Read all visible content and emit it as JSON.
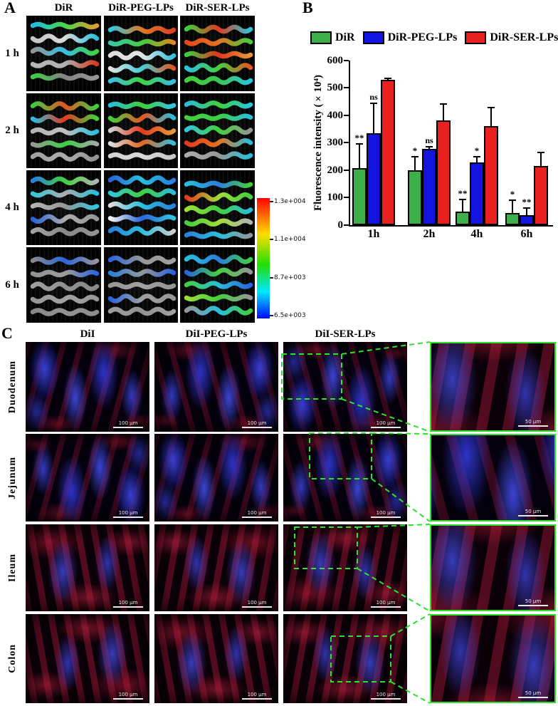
{
  "panel_a": {
    "label": "A",
    "column_headers": [
      "DiR",
      "DiR-PEG-LPs",
      "DiR-SER-LPs"
    ],
    "row_labels": [
      "1 h",
      "2 h",
      "4 h",
      "6 h"
    ],
    "colorbar": {
      "tick_labels": [
        "1.3e+004",
        "1.1e+004",
        "8.7e+003",
        "6.5e+003"
      ],
      "gradient_top_to_bottom": [
        "#ff0000",
        "#ffdd00",
        "#22e000",
        "#00e8ff",
        "#0008ff"
      ]
    },
    "cells": [
      {
        "row": "1 h",
        "col": "DiR",
        "lines": [
          [
            "#22c8f0",
            "#4ce24a",
            "#f2a13a"
          ],
          [
            "#cfcfcf",
            "#e5e5e5",
            "#2bc8e8"
          ],
          [
            "#9a9a9a",
            "#39c9ee",
            "#43dd3f"
          ],
          [
            "#c0c0c0",
            "#b8b8b8",
            "#e03c20"
          ],
          [
            "#3fd846",
            "#8a8a8a",
            "#9f9f9f"
          ]
        ]
      },
      {
        "row": "1 h",
        "col": "DiR-PEG-LPs",
        "lines": [
          [
            "#35d0e8",
            "#e87f2a",
            "#e8442a"
          ],
          [
            "#3bd0b0",
            "#45d843",
            "#ef8f1f"
          ],
          [
            "#e8e8e8",
            "#f0f0f0",
            "#35c8e8"
          ],
          [
            "#eeeeee",
            "#46d6e2",
            "#ef5a22"
          ],
          [
            "#40c8ee",
            "#43dd43",
            "#37c8e8"
          ]
        ]
      },
      {
        "row": "1 h",
        "col": "DiR-SER-LPs",
        "lines": [
          [
            "#3fd846",
            "#ef3b1e",
            "#2ad0e8"
          ],
          [
            "#ef4a1e",
            "#f07820",
            "#44da40"
          ],
          [
            "#41d843",
            "#ef361c",
            "#f2a13a"
          ],
          [
            "#2ecbe8",
            "#44da40",
            "#ef5a22"
          ],
          [
            "#44da40",
            "#3fcf52",
            "#2ad0e8"
          ]
        ]
      },
      {
        "row": "2 h",
        "col": "DiR",
        "lines": [
          [
            "#3fd846",
            "#ef5a22",
            "#41d843"
          ],
          [
            "#2bc8e8",
            "#ef3b1e",
            "#44da40"
          ],
          [
            "#bdbdbd",
            "#c9c9c9",
            "#2bc8e8"
          ],
          [
            "#9e9e9e",
            "#3fd846",
            "#b0b0b0"
          ],
          [
            "#aaaaaa",
            "#b5b5b5",
            "#9a9a9a"
          ]
        ]
      },
      {
        "row": "2 h",
        "col": "DiR-PEG-LPs",
        "lines": [
          [
            "#2bc8e8",
            "#44da40",
            "#35d0e8"
          ],
          [
            "#44da40",
            "#ef5a22",
            "#2bc8e8"
          ],
          [
            "#d9d9d9",
            "#ef3b1e",
            "#f2a13a"
          ],
          [
            "#e8e8e8",
            "#ef6a20",
            "#35c8e8"
          ],
          [
            "#dddddd",
            "#e3e3e3",
            "#cfcfcf"
          ]
        ]
      },
      {
        "row": "2 h",
        "col": "DiR-SER-LPs",
        "lines": [
          [
            "#2bc8e8",
            "#44da40",
            "#2ad0e8"
          ],
          [
            "#44da40",
            "#3fd846",
            "#2bc8e8"
          ],
          [
            "#35d0e8",
            "#44da40",
            "#9e9e9e"
          ],
          [
            "#ef3b1e",
            "#f07820",
            "#2bc8e8"
          ],
          [
            "#b5b5b5",
            "#9e9e9e",
            "#2bc8e8"
          ]
        ]
      },
      {
        "row": "4 h",
        "col": "DiR",
        "lines": [
          [
            "#2b86e8",
            "#44da40",
            "#bdbdbd"
          ],
          [
            "#35d0e8",
            "#b5b5b5",
            "#2bc8e8"
          ],
          [
            "#bdbdbd",
            "#9e9e9e",
            "#35d0e8"
          ],
          [
            "#2b6ae8",
            "#b5b5b5",
            "#9e9e9e"
          ],
          [
            "#aaaaaa",
            "#8f8f8f",
            "#9a9a9a"
          ]
        ]
      },
      {
        "row": "4 h",
        "col": "DiR-PEG-LPs",
        "lines": [
          [
            "#2b6ae8",
            "#2bc8e8",
            "#2b86e8"
          ],
          [
            "#35d0e8",
            "#44da40",
            "#2bc8e8"
          ],
          [
            "#e8e8e8",
            "#2bc8e8",
            "#2b86e8"
          ],
          [
            "#ffffff",
            "#2b6ae8",
            "#35d0e8"
          ],
          [
            "#2b86e8",
            "#2bc8e8",
            "#d9d9d9"
          ]
        ]
      },
      {
        "row": "4 h",
        "col": "DiR-SER-LPs",
        "lines": [
          [
            "#2bc8e8",
            "#2b86e8",
            "#44da40"
          ],
          [
            "#ef3b1e",
            "#a7e83a",
            "#44da40"
          ],
          [
            "#a7e83a",
            "#44da40",
            "#2bc8e8"
          ],
          [
            "#44da40",
            "#a7e83a",
            "#bdbdbd"
          ],
          [
            "#2b86e8",
            "#2bc8e8",
            "#9e9e9e"
          ]
        ]
      },
      {
        "row": "6 h",
        "col": "DiR",
        "lines": [
          [
            "#8f8f8f",
            "#2b6ae8",
            "#9e9e9e"
          ],
          [
            "#9a9a9a",
            "#a5a5a5",
            "#2b6ae8"
          ],
          [
            "#a8a8a8",
            "#979797",
            "#8f8f8f"
          ],
          [
            "#9e9e9e",
            "#ababab",
            "#a0a0a0"
          ],
          [
            "#8f8f8f",
            "#9a9a9a",
            "#939393"
          ]
        ]
      },
      {
        "row": "6 h",
        "col": "DiR-PEG-LPs",
        "lines": [
          [
            "#2b6ae8",
            "#9e9e9e",
            "#a8a8a8"
          ],
          [
            "#2b86e8",
            "#9e9e9e",
            "#2b6ae8"
          ],
          [
            "#9e9e9e",
            "#a8a8a8",
            "#9a9a9a"
          ],
          [
            "#2b6ae8",
            "#a8a8a8",
            "#9e9e9e"
          ],
          [
            "#a3a3a3",
            "#9a9a9a",
            "#a8a8a8"
          ]
        ]
      },
      {
        "row": "6 h",
        "col": "DiR-SER-LPs",
        "lines": [
          [
            "#2bc8e8",
            "#2b86e8",
            "#44da40"
          ],
          [
            "#2b6ae8",
            "#44da40",
            "#9e9e9e"
          ],
          [
            "#44da40",
            "#2bc8e8",
            "#2b6ae8"
          ],
          [
            "#a7e83a",
            "#44da40",
            "#9e9e9e"
          ],
          [
            "#9e9e9e",
            "#2bc8e8",
            "#44da40"
          ]
        ]
      }
    ]
  },
  "panel_b": {
    "label": "B"
  },
  "chart_data": {
    "type": "bar",
    "title": "",
    "categories": [
      "1h",
      "2h",
      "4h",
      "6h"
    ],
    "series": [
      {
        "name": "DiR",
        "color": "#3db04c",
        "values": [
          208,
          200,
          49,
          43
        ],
        "errors": [
          88,
          50,
          45,
          47
        ],
        "significance": [
          "**",
          "*",
          "**",
          "*"
        ]
      },
      {
        "name": "DiR-PEG-LPs",
        "color": "#1414e0",
        "values": [
          336,
          277,
          229,
          36
        ],
        "errors": [
          110,
          8,
          21,
          25
        ],
        "significance": [
          "ns",
          "ns",
          "*",
          "**"
        ]
      },
      {
        "name": "DiR-SER-LPs",
        "color": "#e8201f",
        "values": [
          531,
          382,
          362,
          215
        ],
        "errors": [
          6,
          60,
          67,
          50
        ],
        "significance": [
          "",
          "",
          "",
          ""
        ]
      }
    ],
    "xlabel": "",
    "ylabel": "Fluorescence intensity (×10⁴)",
    "ylim": [
      0,
      600
    ],
    "yticks": [
      0,
      100,
      200,
      300,
      400,
      500,
      600
    ],
    "legend_position": "top",
    "grid": false
  },
  "panel_c": {
    "label": "C",
    "column_headers": [
      "DiI",
      "DiI-PEG-LPs",
      "DiI-SER-LPs"
    ],
    "row_labels": [
      "Duodenum",
      "Jejunum",
      "Ileum",
      "Colon"
    ],
    "scale_bar_main": "100 μm",
    "scale_bar_inset": "50 μm",
    "annotation_color": "#2ce22c"
  }
}
